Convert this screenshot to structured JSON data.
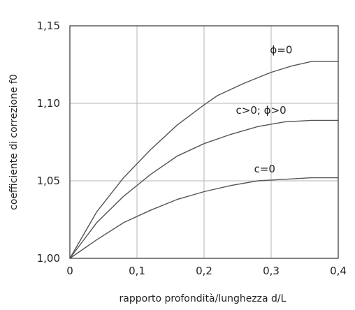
{
  "chart_data": {
    "type": "line",
    "title": "",
    "xlabel": "rapporto profondità/lunghezza  d/L",
    "ylabel": "coefficiente di correzione f0",
    "xlim": [
      0,
      0.4
    ],
    "ylim": [
      1.0,
      1.15
    ],
    "grid": true,
    "x_ticks": [
      0,
      0.1,
      0.2,
      0.3,
      0.4
    ],
    "x_tick_labels": [
      "0",
      "0,1",
      "0,2",
      "0,3",
      "0,4"
    ],
    "y_ticks": [
      1.0,
      1.05,
      1.1,
      1.15
    ],
    "y_tick_labels": [
      "1,00",
      "1,05",
      "1,10",
      "1,15"
    ],
    "series": [
      {
        "name": "ϕ=0",
        "x": [
          0,
          0.04,
          0.08,
          0.12,
          0.16,
          0.2,
          0.22,
          0.26,
          0.3,
          0.33,
          0.36,
          0.4
        ],
        "y": [
          1.0,
          1.03,
          1.052,
          1.07,
          1.086,
          1.099,
          1.105,
          1.113,
          1.12,
          1.124,
          1.127,
          1.127
        ]
      },
      {
        "name": "c>0; ϕ>0",
        "x": [
          0,
          0.04,
          0.08,
          0.12,
          0.16,
          0.2,
          0.24,
          0.28,
          0.32,
          0.36,
          0.4
        ],
        "y": [
          1.0,
          1.023,
          1.04,
          1.054,
          1.066,
          1.074,
          1.08,
          1.085,
          1.088,
          1.089,
          1.089
        ]
      },
      {
        "name": "c=0",
        "x": [
          0,
          0.04,
          0.08,
          0.12,
          0.16,
          0.2,
          0.24,
          0.28,
          0.32,
          0.36,
          0.4
        ],
        "y": [
          1.0,
          1.012,
          1.023,
          1.031,
          1.038,
          1.043,
          1.047,
          1.05,
          1.051,
          1.052,
          1.052
        ]
      }
    ]
  }
}
